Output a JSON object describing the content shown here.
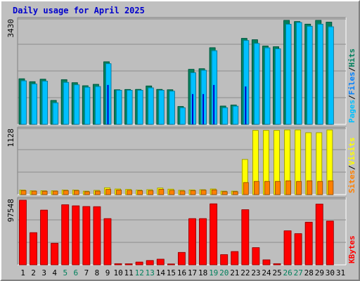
{
  "chart_data": {
    "type": "bar",
    "title": "Daily usage for April 2025",
    "x": [
      "1",
      "2",
      "3",
      "4",
      "5",
      "6",
      "7",
      "8",
      "9",
      "10",
      "11",
      "12",
      "13",
      "14",
      "15",
      "16",
      "17",
      "18",
      "19",
      "20",
      "21",
      "22",
      "23",
      "24",
      "25",
      "26",
      "27",
      "28",
      "29",
      "30",
      "31"
    ],
    "weekend_days": [
      "5",
      "6",
      "12",
      "13",
      "19",
      "20",
      "26",
      "27"
    ],
    "panels": [
      {
        "name": "hits-pages-files",
        "ymax_label": "3430",
        "ymax": 3430,
        "side_labels": [
          "Pages",
          "Files",
          "Hits"
        ],
        "series": [
          {
            "name": "Hits",
            "color": "#00805c",
            "values": [
              1502,
              1406,
              1488,
              789,
              1474,
              1373,
              1272,
              1319,
              2064,
              1140,
              1150,
              1152,
              1266,
              1152,
              1140,
              588,
              1814,
              1835,
              2528,
              603,
              637,
              2835,
              2790,
              2582,
              2560,
              3430,
              3390,
              3305,
              3430,
              3370,
              0
            ]
          },
          {
            "name": "Files",
            "color": "#00c0ff",
            "values": [
              1436,
              1330,
              1426,
              710,
              1384,
              1303,
              1223,
              1247,
              2000,
              1124,
              1124,
              1124,
              1204,
              1124,
              1094,
              548,
              1704,
              1784,
              2429,
              548,
              599,
              2765,
              2669,
              2524,
              2491,
              3302,
              3361,
              3237,
              3305,
              3219,
              0
            ]
          },
          {
            "name": "Pages",
            "color": "#0000c8",
            "values": [
              0,
              0,
              0,
              0,
              0,
              0,
              0,
              0,
              1300,
              0,
              0,
              0,
              0,
              0,
              0,
              0,
              1000,
              1000,
              1300,
              0,
              0,
              1250,
              0,
              0,
              0,
              0,
              0,
              0,
              0,
              0,
              0
            ]
          }
        ]
      },
      {
        "name": "visits-sites",
        "ymax_label": "1128",
        "ymax": 1128,
        "side_labels": [
          "Sites",
          "Visits"
        ],
        "series": [
          {
            "name": "Visits",
            "color": "#ffff00",
            "values": [
              80,
              66,
              68,
              66,
              80,
              80,
              60,
              74,
              119,
              98,
              90,
              80,
              86,
              114,
              95,
              75,
              82,
              86,
              98,
              60,
              60,
              613,
              1120,
              1120,
              1120,
              1128,
              1128,
              1080,
              1080,
              1128,
              0
            ]
          },
          {
            "name": "Sites",
            "color": "#ff8000",
            "values": [
              70,
              60,
              58,
              60,
              70,
              70,
              50,
              60,
              90,
              80,
              74,
              68,
              70,
              92,
              75,
              62,
              70,
              76,
              82,
              50,
              50,
              210,
              230,
              230,
              230,
              240,
              230,
              240,
              230,
              240,
              0
            ]
          }
        ]
      },
      {
        "name": "kbytes",
        "ymax_label": "97548",
        "ymax": 97548,
        "side_labels": [
          "KBytes"
        ],
        "series": [
          {
            "name": "KBytes",
            "color": "#ff0000",
            "values": [
              97548,
              48500,
              82500,
              32500,
              90700,
              89000,
              88000,
              87700,
              69700,
              1700,
              1500,
              4100,
              6500,
              8500,
              1250,
              18700,
              69700,
              69700,
              92000,
              15400,
              20000,
              83200,
              25900,
              7500,
              1700,
              51300,
              47000,
              64300,
              91700,
              66000,
              0
            ]
          }
        ]
      }
    ],
    "colors": {
      "background": "#c0c0c0",
      "plot_background": "#bebebe",
      "gridline": "#8c8c8c",
      "title": "#0000cc",
      "weekday_label": "#000000",
      "weekend_label": "#00805c",
      "hits_label": "#00805c",
      "files_label": "#0080ff",
      "pages_label": "#00c0ff",
      "visits_label": "#ffff00",
      "sites_label": "#ff8000",
      "kbytes_label": "#ff0000"
    }
  }
}
